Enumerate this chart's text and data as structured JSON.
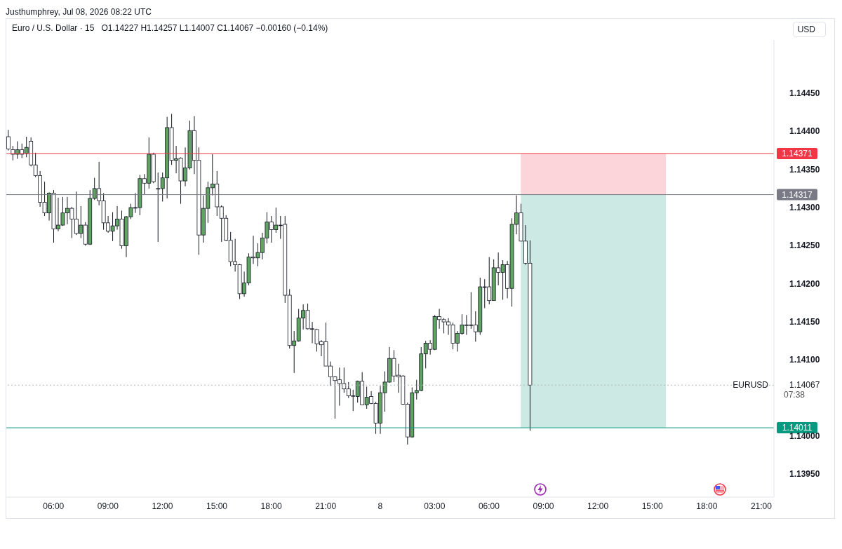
{
  "chart_data": {
    "type": "candlestick",
    "title": "Euro / U.S. Dollar · 15",
    "subtitle": "O1.14227 H1.14257 L1.14007 C1.14067 −0.00160 (−0.14%)",
    "ylabel": "USD",
    "annotations": [
      "Justhumphrey, Jul 08, 2026 08:22 UTC",
      "07:38"
    ],
    "colors": [
      "#ffffff",
      "#ffffff",
      "#5fa463",
      "#ffffff",
      "#5fa463",
      "#ffffff",
      "#ffffff",
      "#ffffff",
      "#ffffff",
      "#5fa463",
      "#ffffff",
      "#5fa463",
      "#5fa463",
      "#5fa463",
      "#ffffff",
      "#ffffff",
      "#5fa463",
      "#ffffff",
      "#5fa463",
      "#5fa463",
      "#ffffff",
      "#ffffff",
      "#ffffff",
      "#5fa463",
      "#5fa463",
      "#ffffff",
      "#5fa463",
      "#5fa463",
      "#ffffff",
      "#5fa463",
      "#ffffff",
      "#5fa463",
      "#ffffff",
      "#ffffff",
      "#5fa463",
      "#5fa463",
      "#ffffff",
      "#5fa463",
      "#ffffff",
      "#5fa463",
      "#5fa463",
      "#ffffff",
      "#ffffff",
      "#5fa463",
      "#5fa463",
      "#5fa463",
      "#ffffff",
      "#ffffff",
      "#ffffff",
      "#ffffff",
      "#ffffff",
      "#ffffff",
      "#5fa463",
      "#5fa463",
      "#ffffff",
      "#5fa463",
      "#5fa463",
      "#5fa463",
      "#ffffff",
      "#5fa463",
      "#ffffff",
      "#ffffff",
      "#ffffff",
      "#5fa463",
      "#5fa463",
      "#5fa463",
      "#ffffff",
      "#ffffff",
      "#ffffff",
      "#ffffff",
      "#ffffff",
      "#ffffff",
      "#ffffff",
      "#ffffff",
      "#ffffff",
      "#ffffff",
      "#ffffff",
      "#5fa463",
      "#ffffff",
      "#5fa463",
      "#ffffff",
      "#ffffff",
      "#5fa463",
      "#5fa463",
      "#5fa463",
      "#ffffff",
      "#ffffff",
      "#ffffff",
      "#ffffff",
      "#5fa463",
      "#5fa463",
      "#5fa463",
      "#5fa463",
      "#ffffff",
      "#5fa463",
      "#ffffff",
      "#ffffff",
      "#ffffff",
      "#ffffff",
      "#5fa463",
      "#5fa463",
      "#ffffff",
      "#ffffff",
      "#ffffff",
      "#5fa463",
      "#ffffff",
      "#ffffff",
      "#5fa463",
      "#ffffff",
      "#5fa463",
      "#ffffff",
      "#5fa463",
      "#5fa463",
      "#ffffff",
      "#ffffff",
      "#ffffff"
    ],
    "x": [
      "2026-07-07T03:30",
      "2026-07-07T03:45",
      "2026-07-07T04:00",
      "2026-07-07T04:15",
      "2026-07-07T04:30",
      "2026-07-07T04:45",
      "2026-07-07T05:00",
      "2026-07-07T05:15",
      "2026-07-07T05:30",
      "2026-07-07T05:45",
      "2026-07-07T06:00",
      "2026-07-07T06:15",
      "2026-07-07T06:30",
      "2026-07-07T06:45",
      "2026-07-07T07:00",
      "2026-07-07T07:15",
      "2026-07-07T07:30",
      "2026-07-07T07:45",
      "2026-07-07T08:00",
      "2026-07-07T08:15",
      "2026-07-07T08:30",
      "2026-07-07T08:45",
      "2026-07-07T09:00",
      "2026-07-07T09:15",
      "2026-07-07T09:30",
      "2026-07-07T09:45",
      "2026-07-07T10:00",
      "2026-07-07T10:15",
      "2026-07-07T10:30",
      "2026-07-07T10:45",
      "2026-07-07T11:00",
      "2026-07-07T11:15",
      "2026-07-07T11:30",
      "2026-07-07T11:45",
      "2026-07-07T12:00",
      "2026-07-07T12:15",
      "2026-07-07T12:30",
      "2026-07-07T12:45",
      "2026-07-07T13:00",
      "2026-07-07T13:15",
      "2026-07-07T13:30",
      "2026-07-07T13:45",
      "2026-07-07T14:00",
      "2026-07-07T14:15",
      "2026-07-07T14:30",
      "2026-07-07T14:45",
      "2026-07-07T15:00",
      "2026-07-07T15:15",
      "2026-07-07T15:30",
      "2026-07-07T15:45",
      "2026-07-07T16:00",
      "2026-07-07T16:15",
      "2026-07-07T16:30",
      "2026-07-07T16:45",
      "2026-07-07T17:00",
      "2026-07-07T17:15",
      "2026-07-07T17:30",
      "2026-07-07T17:45",
      "2026-07-07T18:00",
      "2026-07-07T18:15",
      "2026-07-07T18:30",
      "2026-07-07T18:45",
      "2026-07-07T19:00",
      "2026-07-07T19:15",
      "2026-07-07T19:30",
      "2026-07-07T19:45",
      "2026-07-07T20:00",
      "2026-07-07T20:15",
      "2026-07-07T20:30",
      "2026-07-07T20:45",
      "2026-07-07T21:00",
      "2026-07-07T21:15",
      "2026-07-07T21:30",
      "2026-07-07T21:45",
      "2026-07-07T22:00",
      "2026-07-07T22:15",
      "2026-07-07T22:30",
      "2026-07-07T22:45",
      "2026-07-07T23:00",
      "2026-07-07T23:15",
      "2026-07-07T23:30",
      "2026-07-07T23:45",
      "2026-07-08T00:00",
      "2026-07-08T00:15",
      "2026-07-08T00:30",
      "2026-07-08T00:45",
      "2026-07-08T01:00",
      "2026-07-08T01:15",
      "2026-07-08T01:30",
      "2026-07-08T01:45",
      "2026-07-08T02:00",
      "2026-07-08T02:15",
      "2026-07-08T02:30",
      "2026-07-08T02:45",
      "2026-07-08T03:00",
      "2026-07-08T03:15",
      "2026-07-08T03:30",
      "2026-07-08T03:45",
      "2026-07-08T04:00",
      "2026-07-08T04:15",
      "2026-07-08T04:30",
      "2026-07-08T04:45",
      "2026-07-08T05:00",
      "2026-07-08T05:15",
      "2026-07-08T05:30",
      "2026-07-08T05:45",
      "2026-07-08T06:00",
      "2026-07-08T06:15",
      "2026-07-08T06:30",
      "2026-07-08T06:45",
      "2026-07-08T07:00",
      "2026-07-08T07:15",
      "2026-07-08T07:30",
      "2026-07-08T07:45",
      "2026-07-08T08:00",
      "2026-07-08T08:15"
    ],
    "ohlc": [
      [
        1.14393,
        1.14402,
        1.14375,
        1.14377
      ],
      [
        1.14376,
        1.14381,
        1.14362,
        1.1437
      ],
      [
        1.1437,
        1.14387,
        1.14364,
        1.14376
      ],
      [
        1.14376,
        1.14384,
        1.14365,
        1.1437
      ],
      [
        1.14371,
        1.14393,
        1.14366,
        1.14379
      ],
      [
        1.14387,
        1.14392,
        1.14354,
        1.14356
      ],
      [
        1.14356,
        1.14372,
        1.1434,
        1.14342
      ],
      [
        1.14342,
        1.14348,
        1.14301,
        1.14307
      ],
      [
        1.14307,
        1.14334,
        1.14289,
        1.14293
      ],
      [
        1.14293,
        1.1432,
        1.14283,
        1.14319
      ],
      [
        1.14319,
        1.14323,
        1.14254,
        1.14272
      ],
      [
        1.14272,
        1.14313,
        1.14269,
        1.14277
      ],
      [
        1.14277,
        1.14314,
        1.14276,
        1.14293
      ],
      [
        1.14293,
        1.14314,
        1.14278,
        1.14299
      ],
      [
        1.14299,
        1.14301,
        1.1426,
        1.14285
      ],
      [
        1.14285,
        1.14321,
        1.14264,
        1.14266
      ],
      [
        1.14266,
        1.14302,
        1.1426,
        1.14277
      ],
      [
        1.14277,
        1.14281,
        1.1425,
        1.14252
      ],
      [
        1.14252,
        1.14323,
        1.14251,
        1.14312
      ],
      [
        1.14312,
        1.14339,
        1.1431,
        1.14325
      ],
      [
        1.14325,
        1.1436,
        1.14303,
        1.14309
      ],
      [
        1.14309,
        1.14319,
        1.14271,
        1.1428
      ],
      [
        1.1428,
        1.14289,
        1.14267,
        1.14269
      ],
      [
        1.14269,
        1.14294,
        1.14256,
        1.14276
      ],
      [
        1.14276,
        1.14302,
        1.14271,
        1.14285
      ],
      [
        1.14285,
        1.14296,
        1.14246,
        1.1425
      ],
      [
        1.1425,
        1.14289,
        1.14235,
        1.14288
      ],
      [
        1.14288,
        1.14305,
        1.14285,
        1.143
      ],
      [
        1.143,
        1.14319,
        1.14293,
        1.143
      ],
      [
        1.143,
        1.14343,
        1.1429,
        1.14338
      ],
      [
        1.14338,
        1.14344,
        1.14317,
        1.14332
      ],
      [
        1.14332,
        1.14392,
        1.14325,
        1.1437
      ],
      [
        1.1437,
        1.14372,
        1.14332,
        1.14334
      ],
      [
        1.14325,
        1.14346,
        1.14255,
        1.14325
      ],
      [
        1.14325,
        1.14346,
        1.14308,
        1.14339
      ],
      [
        1.14339,
        1.14419,
        1.14312,
        1.14405
      ],
      [
        1.14405,
        1.14423,
        1.14356,
        1.14362
      ],
      [
        1.14362,
        1.14381,
        1.14345,
        1.14364
      ],
      [
        1.14365,
        1.14366,
        1.14305,
        1.14335
      ],
      [
        1.14335,
        1.14379,
        1.14328,
        1.14352
      ],
      [
        1.14352,
        1.14414,
        1.1435,
        1.14401
      ],
      [
        1.14401,
        1.1442,
        1.14344,
        1.14362
      ],
      [
        1.14362,
        1.14379,
        1.14238,
        1.14264
      ],
      [
        1.14264,
        1.14316,
        1.14254,
        1.14299
      ],
      [
        1.14299,
        1.14334,
        1.1428,
        1.14326
      ],
      [
        1.14326,
        1.1437,
        1.14316,
        1.14331
      ],
      [
        1.14331,
        1.14348,
        1.14289,
        1.14301
      ],
      [
        1.14301,
        1.14303,
        1.14255,
        1.14286
      ],
      [
        1.14286,
        1.1429,
        1.14256,
        1.14257
      ],
      [
        1.14257,
        1.14268,
        1.14223,
        1.14229
      ],
      [
        1.14229,
        1.14259,
        1.14216,
        1.14225
      ],
      [
        1.14225,
        1.14226,
        1.1418,
        1.14187
      ],
      [
        1.14187,
        1.14216,
        1.14183,
        1.14201
      ],
      [
        1.14201,
        1.1424,
        1.14198,
        1.14235
      ],
      [
        1.14235,
        1.14263,
        1.14226,
        1.14234
      ],
      [
        1.14234,
        1.14253,
        1.14223,
        1.14241
      ],
      [
        1.14241,
        1.14267,
        1.14232,
        1.1426
      ],
      [
        1.1426,
        1.14294,
        1.14253,
        1.14281
      ],
      [
        1.14281,
        1.14289,
        1.14254,
        1.14271
      ],
      [
        1.14271,
        1.143,
        1.14267,
        1.14277
      ],
      [
        1.14277,
        1.14289,
        1.14259,
        1.14277
      ],
      [
        1.14278,
        1.14289,
        1.14175,
        1.14185
      ],
      [
        1.14185,
        1.14193,
        1.14115,
        1.14119
      ],
      [
        1.14119,
        1.14138,
        1.14083,
        1.14125
      ],
      [
        1.14125,
        1.14167,
        1.14124,
        1.14155
      ],
      [
        1.14155,
        1.14173,
        1.1414,
        1.14165
      ],
      [
        1.14165,
        1.14174,
        1.1414,
        1.14141
      ],
      [
        1.14141,
        1.1415,
        1.14122,
        1.14141
      ],
      [
        1.1414,
        1.14141,
        1.14111,
        1.14121
      ],
      [
        1.14124,
        1.14126,
        1.14105,
        1.1412
      ],
      [
        1.14124,
        1.14149,
        1.14092,
        1.14092
      ],
      [
        1.14092,
        1.14098,
        1.14066,
        1.14078
      ],
      [
        1.14078,
        1.14079,
        1.14023,
        1.14073
      ],
      [
        1.14074,
        1.1409,
        1.1404,
        1.14069
      ],
      [
        1.14069,
        1.1409,
        1.14057,
        1.14062
      ],
      [
        1.14062,
        1.14071,
        1.1405,
        1.14053
      ],
      [
        1.14053,
        1.14061,
        1.14033,
        1.14053
      ],
      [
        1.14052,
        1.14073,
        1.14044,
        1.14072
      ],
      [
        1.14072,
        1.14084,
        1.14041,
        1.14041
      ],
      [
        1.14041,
        1.14065,
        1.14036,
        1.14051
      ],
      [
        1.14052,
        1.14059,
        1.14042,
        1.14043
      ],
      [
        1.14043,
        1.14045,
        1.14003,
        1.14017
      ],
      [
        1.14017,
        1.14066,
        1.14003,
        1.14057
      ],
      [
        1.14057,
        1.14085,
        1.14032,
        1.14071
      ],
      [
        1.14071,
        1.14117,
        1.1407,
        1.14102
      ],
      [
        1.14102,
        1.14113,
        1.14071,
        1.14079
      ],
      [
        1.1408,
        1.14095,
        1.14057,
        1.14078
      ],
      [
        1.14079,
        1.1408,
        1.14041,
        1.14042
      ],
      [
        1.14042,
        1.14044,
        1.13989,
        1.13999
      ],
      [
        1.13999,
        1.14064,
        1.13998,
        1.14057
      ],
      [
        1.14057,
        1.14074,
        1.14048,
        1.1406
      ],
      [
        1.1406,
        1.14117,
        1.14059,
        1.14108
      ],
      [
        1.14108,
        1.14125,
        1.14089,
        1.14122
      ],
      [
        1.14122,
        1.14126,
        1.14107,
        1.14114
      ],
      [
        1.14114,
        1.14159,
        1.14113,
        1.14157
      ],
      [
        1.14157,
        1.14167,
        1.14141,
        1.14153
      ],
      [
        1.14153,
        1.14155,
        1.14135,
        1.1415
      ],
      [
        1.1415,
        1.14155,
        1.14133,
        1.14146
      ],
      [
        1.14146,
        1.14149,
        1.14114,
        1.14122
      ],
      [
        1.14122,
        1.14138,
        1.14111,
        1.14135
      ],
      [
        1.14135,
        1.1416,
        1.14133,
        1.14146
      ],
      [
        1.14146,
        1.14159,
        1.14133,
        1.14146
      ],
      [
        1.14146,
        1.14189,
        1.14141,
        1.14146
      ],
      [
        1.14146,
        1.14164,
        1.14124,
        1.14137
      ],
      [
        1.14137,
        1.14208,
        1.14133,
        1.14196
      ],
      [
        1.14196,
        1.14206,
        1.14168,
        1.14196
      ],
      [
        1.14196,
        1.14235,
        1.14173,
        1.14178
      ],
      [
        1.14178,
        1.14232,
        1.14178,
        1.14221
      ],
      [
        1.14221,
        1.14241,
        1.14198,
        1.14215
      ],
      [
        1.14215,
        1.14231,
        1.14179,
        1.14225
      ],
      [
        1.14225,
        1.1423,
        1.14181,
        1.14194
      ],
      [
        1.14194,
        1.14286,
        1.1417,
        1.14278
      ],
      [
        1.14278,
        1.14316,
        1.14265,
        1.14293
      ],
      [
        1.14293,
        1.14305,
        1.14256,
        1.14256
      ],
      [
        1.14256,
        1.14277,
        1.14225,
        1.14227
      ],
      [
        1.14227,
        1.14257,
        1.14007,
        1.14067
      ]
    ],
    "xlim": [
      "2026-07-07T03:24",
      "2026-07-08T21:42"
    ],
    "xticks": [
      {
        "value": "2026-07-07T06:00",
        "label": "06:00"
      },
      {
        "value": "2026-07-07T09:00",
        "label": "09:00"
      },
      {
        "value": "2026-07-07T12:00",
        "label": "12:00"
      },
      {
        "value": "2026-07-07T15:00",
        "label": "15:00"
      },
      {
        "value": "2026-07-07T18:00",
        "label": "18:00"
      },
      {
        "value": "2026-07-07T21:00",
        "label": "21:00"
      },
      {
        "value": "2026-07-08T00:00",
        "label": "8"
      },
      {
        "value": "2026-07-08T03:00",
        "label": "03:00"
      },
      {
        "value": "2026-07-08T06:00",
        "label": "06:00"
      },
      {
        "value": "2026-07-08T09:00",
        "label": "09:00"
      },
      {
        "value": "2026-07-08T12:00",
        "label": "12:00"
      },
      {
        "value": "2026-07-08T15:00",
        "label": "15:00"
      },
      {
        "value": "2026-07-08T18:00",
        "label": "18:00"
      },
      {
        "value": "2026-07-08T21:00",
        "label": "21:00"
      }
    ],
    "ylim": [
      1.1392,
      1.1452
    ],
    "yticks": [
      {
        "value": 1.1395,
        "label": "1.13950"
      },
      {
        "value": 1.14,
        "label": "1.14000"
      },
      {
        "value": 1.14067,
        "label": "1.14067"
      },
      {
        "value": 1.141,
        "label": "1.14100"
      },
      {
        "value": 1.1415,
        "label": "1.14150"
      },
      {
        "value": 1.142,
        "label": "1.14200"
      },
      {
        "value": 1.1425,
        "label": "1.14250"
      },
      {
        "value": 1.143,
        "label": "1.14300"
      },
      {
        "value": 1.1435,
        "label": "1.14350"
      },
      {
        "value": 1.144,
        "label": "1.14400"
      },
      {
        "value": 1.1445,
        "label": "1.14450"
      }
    ],
    "bands": [
      {
        "axis": "y",
        "from": 1.14317,
        "to": 1.14371,
        "color": "#fbd5d9"
      },
      {
        "axis": "y",
        "from": 1.14011,
        "to": 1.14317,
        "color": "#cde9e3"
      }
    ],
    "ref_lines": [
      {
        "axis": "y",
        "value": 1.14371,
        "label": "1.14371",
        "color": "#f23645"
      },
      {
        "axis": "y",
        "value": 1.14317,
        "label": "1.14317",
        "color": "#787b86"
      },
      {
        "axis": "y",
        "value": 1.14067,
        "label": "EURUSD",
        "color": "#b2b5be",
        "line_style": "dotted"
      },
      {
        "axis": "y",
        "value": 1.14011,
        "label": "1.14011",
        "color": "#089981"
      }
    ]
  }
}
